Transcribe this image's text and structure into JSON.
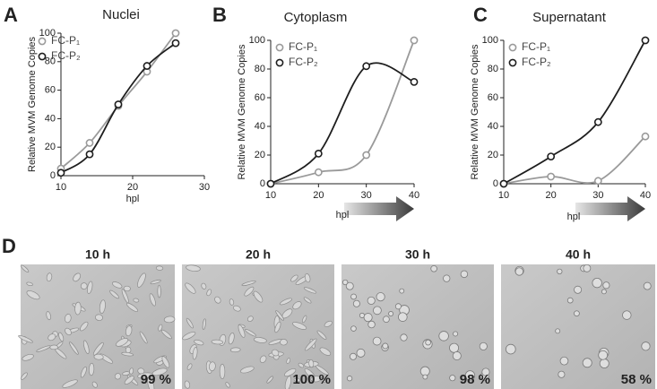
{
  "chart_data": [
    {
      "type": "line",
      "panel": "A",
      "title": "Nuclei",
      "x_label": "hpl",
      "y_label": "Relative MVM Genome Copies",
      "x": [
        10,
        14,
        18,
        22,
        26
      ],
      "xlim": [
        10,
        30
      ],
      "xticks": [
        10,
        20,
        30
      ],
      "ylim": [
        0,
        100
      ],
      "yticks": [
        0,
        20,
        40,
        60,
        80,
        100
      ],
      "series": [
        {
          "name": "FC-P₁",
          "color": "#9a9a9a",
          "values": [
            5,
            23,
            49,
            73,
            100
          ]
        },
        {
          "name": "FC-P₂",
          "color": "#1e1e1e",
          "values": [
            2,
            15,
            50,
            77,
            93
          ]
        }
      ]
    },
    {
      "type": "line",
      "panel": "B",
      "title": "Cytoplasm",
      "x_label": "hpl",
      "y_label": "Relative MVM Genome Copies",
      "x": [
        10,
        20,
        30,
        40
      ],
      "xlim": [
        10,
        40
      ],
      "xticks": [
        10,
        20,
        30,
        40
      ],
      "ylim": [
        0,
        100
      ],
      "yticks": [
        0,
        20,
        40,
        60,
        80,
        100
      ],
      "series": [
        {
          "name": "FC-P₁",
          "color": "#9a9a9a",
          "values": [
            0,
            8,
            20,
            100
          ]
        },
        {
          "name": "FC-P₂",
          "color": "#1e1e1e",
          "values": [
            0,
            21,
            82,
            71
          ]
        }
      ]
    },
    {
      "type": "line",
      "panel": "C",
      "title": "Supernatant",
      "x_label": "hpl",
      "y_label": "Relative MVM Genome Copies",
      "x": [
        10,
        20,
        30,
        40
      ],
      "xlim": [
        10,
        40
      ],
      "xticks": [
        10,
        20,
        30,
        40
      ],
      "ylim": [
        0,
        100
      ],
      "yticks": [
        0,
        20,
        40,
        60,
        80,
        100
      ],
      "series": [
        {
          "name": "FC-P₁",
          "color": "#9a9a9a",
          "values": [
            0,
            5,
            2,
            33
          ]
        },
        {
          "name": "FC-P₂",
          "color": "#1e1e1e",
          "values": [
            0,
            19,
            43,
            100
          ]
        }
      ]
    }
  ],
  "panel_d": {
    "label": "D",
    "images": [
      {
        "title": "10 h",
        "confluence": "99 %"
      },
      {
        "title": "20 h",
        "confluence": "100 %"
      },
      {
        "title": "30 h",
        "confluence": "98 %"
      },
      {
        "title": "40 h",
        "confluence": "58 %"
      }
    ]
  }
}
